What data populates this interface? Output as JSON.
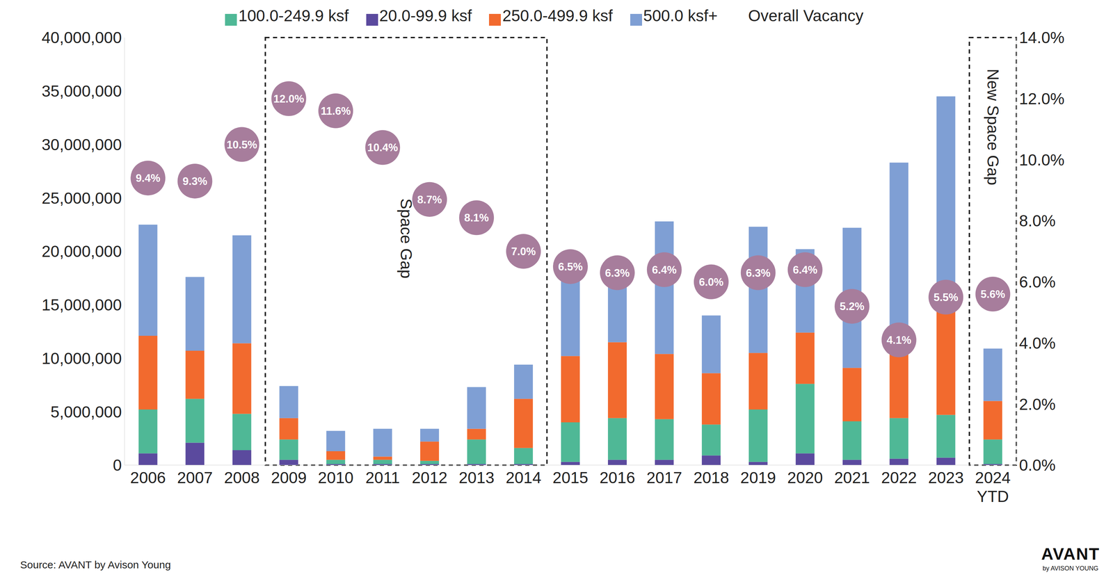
{
  "chart_data": {
    "type": "bar",
    "stacked": true,
    "grid": false,
    "legend": "top",
    "categories": [
      "2006",
      "2007",
      "2008",
      "2009",
      "2010",
      "2011",
      "2012",
      "2013",
      "2014",
      "2015",
      "2016",
      "2017",
      "2018",
      "2019",
      "2020",
      "2021",
      "2022",
      "2023",
      "2024 YTD"
    ],
    "series": [
      {
        "name": "20.0-99.9 ksf",
        "color": "#5b4a9e",
        "values": [
          1100000,
          2100000,
          1400000,
          500000,
          100000,
          100000,
          100000,
          100000,
          100000,
          300000,
          500000,
          500000,
          900000,
          300000,
          1100000,
          500000,
          600000,
          700000,
          100000
        ]
      },
      {
        "name": "100.0-249.9 ksf",
        "color": "#4fb896",
        "values": [
          4100000,
          4100000,
          3400000,
          1900000,
          400000,
          400000,
          300000,
          2300000,
          1500000,
          3700000,
          3900000,
          3800000,
          2900000,
          4900000,
          6500000,
          3600000,
          3800000,
          4000000,
          2300000
        ]
      },
      {
        "name": "250.0-499.9 ksf",
        "color": "#f26a2e",
        "values": [
          6900000,
          4500000,
          6600000,
          2000000,
          800000,
          300000,
          1800000,
          1000000,
          4600000,
          6200000,
          7100000,
          6100000,
          4800000,
          5300000,
          4800000,
          5000000,
          6200000,
          9900000,
          3600000
        ]
      },
      {
        "name": "500.0 ksf+",
        "color": "#7f9fd4",
        "values": [
          10400000,
          6900000,
          10100000,
          3000000,
          1900000,
          2600000,
          1200000,
          3900000,
          3200000,
          7800000,
          6500000,
          12400000,
          5400000,
          11800000,
          7800000,
          13100000,
          17700000,
          19900000,
          4900000
        ]
      },
      {
        "name": "Overall Vacancy",
        "color": "#a77d9c",
        "type": "scatter",
        "marker": "circle",
        "axis": "y2",
        "data_labels": true,
        "values": [
          9.4,
          9.3,
          10.5,
          12.0,
          11.6,
          10.4,
          8.7,
          8.1,
          7.0,
          6.5,
          6.3,
          6.4,
          6.0,
          6.3,
          6.4,
          5.2,
          4.1,
          5.5,
          5.6
        ],
        "value_labels": [
          "9.4%",
          "9.3%",
          "10.5%",
          "12.0%",
          "11.6%",
          "10.4%",
          "8.7%",
          "8.1%",
          "7.0%",
          "6.5%",
          "6.3%",
          "6.4%",
          "6.0%",
          "6.3%",
          "6.4%",
          "5.2%",
          "4.1%",
          "5.5%",
          "5.6%"
        ]
      }
    ],
    "ylim": [
      0,
      40000000
    ],
    "yticks": [
      {
        "value": 0,
        "label": "0"
      },
      {
        "value": 5000000,
        "label": "5,000,000"
      },
      {
        "value": 10000000,
        "label": "10,000,000"
      },
      {
        "value": 15000000,
        "label": "15,000,000"
      },
      {
        "value": 20000000,
        "label": "20,000,000"
      },
      {
        "value": 25000000,
        "label": "25,000,000"
      },
      {
        "value": 30000000,
        "label": "30,000,000"
      },
      {
        "value": 35000000,
        "label": "35,000,000"
      },
      {
        "value": 40000000,
        "label": "40,000,000"
      }
    ],
    "y2lim": [
      0,
      14
    ],
    "y2ticks": [
      {
        "value": 0,
        "label": "0.0%"
      },
      {
        "value": 2,
        "label": "2.0%"
      },
      {
        "value": 4,
        "label": "4.0%"
      },
      {
        "value": 6,
        "label": "6.0%"
      },
      {
        "value": 8,
        "label": "8.0%"
      },
      {
        "value": 10,
        "label": "10.0%"
      },
      {
        "value": 12,
        "label": "12.0%"
      },
      {
        "value": 14,
        "label": "14.0%"
      }
    ],
    "annotations": [
      {
        "text": "Space Gap",
        "x1": "2009",
        "x2": "2014"
      },
      {
        "text": "New Space Gap",
        "x1": "2024 YTD",
        "x2": "2024 YTD"
      }
    ],
    "source": "Source: AVANT by Avison Young",
    "logo": [
      "AVANT",
      "by AVISON YOUNG"
    ]
  }
}
